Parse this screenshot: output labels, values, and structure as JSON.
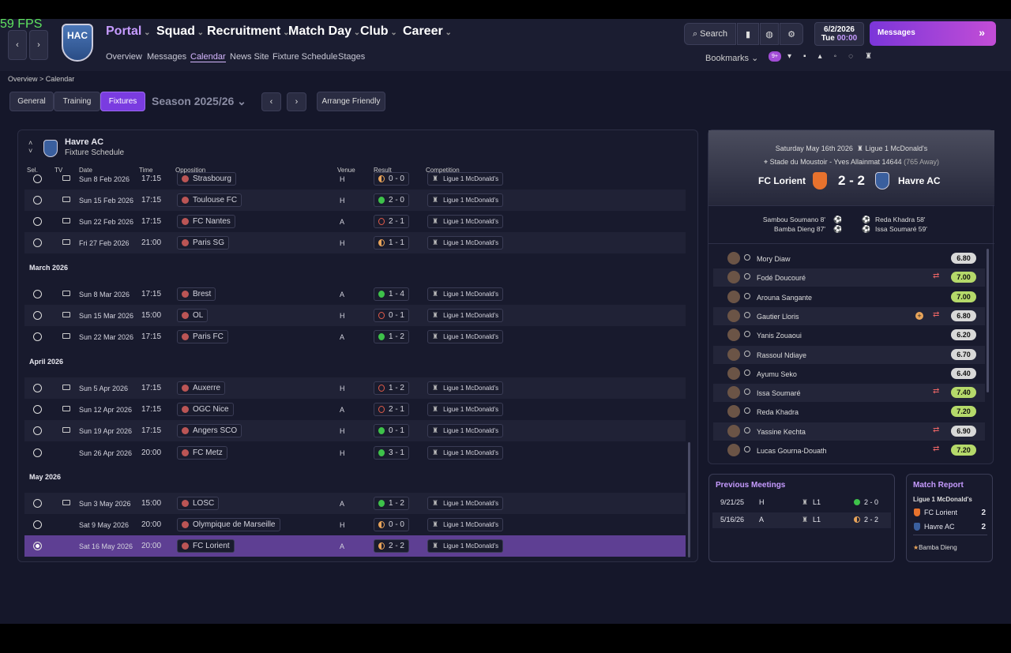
{
  "fps": "59 FPS",
  "logo": "HAC",
  "nav": {
    "main": [
      "Portal",
      "Squad",
      "Recruitment",
      "Match Day",
      "Club",
      "Career"
    ],
    "sub": [
      "Overview",
      "Messages",
      "Calendar",
      "News Site",
      "Fixture Schedule",
      "Stages"
    ],
    "active_sub": 2
  },
  "toolbar": {
    "search": "Search",
    "date": "6/2/2026",
    "day": "Tue",
    "time": "00:00",
    "messages": "Messages",
    "bookmarks": "Bookmarks",
    "badge": "9+"
  },
  "breadcrumb": [
    "Overview",
    "Calendar"
  ],
  "tabs": [
    "General",
    "Training",
    "Fixtures"
  ],
  "active_tab": 2,
  "season": "Season 2025/26",
  "arrange": "Arrange Friendly",
  "panel": {
    "team": "Havre AC",
    "subtitle": "Fixture Schedule",
    "columns": [
      "Sel.",
      "TV",
      "Date",
      "Time",
      "Opposition",
      "Venue",
      "Result",
      "Competition"
    ]
  },
  "fixtures": [
    {
      "rows": [
        {
          "date": "Sun 8 Feb 2026",
          "time": "17:15",
          "opponent": "Strasbourg",
          "venue": "H",
          "result": "0 - 0",
          "result_icon": "half",
          "result_color": "#e8a45a",
          "competition": "Ligue 1 McDonald's",
          "tv": true
        },
        {
          "date": "Sun 15 Feb 2026",
          "time": "17:15",
          "opponent": "Toulouse FC",
          "venue": "H",
          "result": "2 - 0",
          "result_icon": "filled",
          "result_color": "#3ec24a",
          "competition": "Ligue 1 McDonald's",
          "tv": true
        },
        {
          "date": "Sun 22 Feb 2026",
          "time": "17:15",
          "opponent": "FC Nantes",
          "venue": "A",
          "result": "2 - 1",
          "result_icon": "outline",
          "result_color": "#e25b4a",
          "competition": "Ligue 1 McDonald's",
          "tv": true
        },
        {
          "date": "Fri 27 Feb 2026",
          "time": "21:00",
          "opponent": "Paris SG",
          "venue": "H",
          "result": "1 - 1",
          "result_icon": "half",
          "result_color": "#e8a45a",
          "competition": "Ligue 1 McDonald's",
          "tv": true
        }
      ]
    },
    {
      "month": "March 2026",
      "rows": [
        {
          "date": "Sun 8 Mar 2026",
          "time": "17:15",
          "opponent": "Brest",
          "venue": "A",
          "result": "1 - 4",
          "result_icon": "filled",
          "result_color": "#3ec24a",
          "competition": "Ligue 1 McDonald's",
          "tv": true
        },
        {
          "date": "Sun 15 Mar 2026",
          "time": "15:00",
          "opponent": "OL",
          "venue": "H",
          "result": "0 - 1",
          "result_icon": "outline",
          "result_color": "#e25b4a",
          "competition": "Ligue 1 McDonald's",
          "tv": true
        },
        {
          "date": "Sun 22 Mar 2026",
          "time": "17:15",
          "opponent": "Paris FC",
          "venue": "A",
          "result": "1 - 2",
          "result_icon": "filled",
          "result_color": "#3ec24a",
          "competition": "Ligue 1 McDonald's",
          "tv": true
        }
      ]
    },
    {
      "month": "April 2026",
      "rows": [
        {
          "date": "Sun 5 Apr 2026",
          "time": "17:15",
          "opponent": "Auxerre",
          "venue": "H",
          "result": "1 - 2",
          "result_icon": "outline",
          "result_color": "#e25b4a",
          "competition": "Ligue 1 McDonald's",
          "tv": true
        },
        {
          "date": "Sun 12 Apr 2026",
          "time": "17:15",
          "opponent": "OGC Nice",
          "venue": "A",
          "result": "2 - 1",
          "result_icon": "outline",
          "result_color": "#e25b4a",
          "competition": "Ligue 1 McDonald's",
          "tv": true
        },
        {
          "date": "Sun 19 Apr 2026",
          "time": "17:15",
          "opponent": "Angers SCO",
          "venue": "H",
          "result": "0 - 1",
          "result_icon": "filled",
          "result_color": "#3ec24a",
          "competition": "Ligue 1 McDonald's",
          "tv": true
        },
        {
          "date": "Sun 26 Apr 2026",
          "time": "20:00",
          "opponent": "FC Metz",
          "venue": "H",
          "result": "3 - 1",
          "result_icon": "filled",
          "result_color": "#3ec24a",
          "competition": "Ligue 1 McDonald's",
          "tv": false
        }
      ]
    },
    {
      "month": "May 2026",
      "rows": [
        {
          "date": "Sun 3 May 2026",
          "time": "15:00",
          "opponent": "LOSC",
          "venue": "A",
          "result": "1 - 2",
          "result_icon": "filled",
          "result_color": "#3ec24a",
          "competition": "Ligue 1 McDonald's",
          "tv": true
        },
        {
          "date": "Sat 9 May 2026",
          "time": "20:00",
          "opponent": "Olympique de Marseille",
          "venue": "H",
          "result": "0 - 0",
          "result_icon": "half",
          "result_color": "#e8a45a",
          "competition": "Ligue 1 McDonald's",
          "tv": false
        },
        {
          "date": "Sat 16 May 2026",
          "time": "20:00",
          "opponent": "FC Lorient",
          "venue": "A",
          "result": "2 - 2",
          "result_icon": "half",
          "result_color": "#e8a45a",
          "competition": "Ligue 1 McDonald's",
          "tv": false,
          "selected": true
        }
      ]
    }
  ],
  "match": {
    "date": "Saturday May 16th 2026",
    "competition": "Ligue 1 McDonald's",
    "stadium": "Stade du Moustoir - Yves Allainmat",
    "attendance": "14644",
    "away_fans": "(765 Away)",
    "home": "FC Lorient",
    "score": "2 - 2",
    "away": "Havre AC",
    "home_scorers": [
      "Sambou Soumano 8'",
      "Bamba Dieng 87'"
    ],
    "away_scorers": [
      "Reda Khadra 58'",
      "Issa Soumaré 59'"
    ],
    "players": [
      {
        "name": "Mory Diaw",
        "rating": "6.80",
        "rating_color": "#d8d8d8"
      },
      {
        "name": "Fodé Doucouré",
        "rating": "7.00",
        "rating_color": "#b5d96a",
        "sub": true
      },
      {
        "name": "Arouna Sangante",
        "rating": "7.00",
        "rating_color": "#b5d96a"
      },
      {
        "name": "Gautier Lloris",
        "rating": "6.80",
        "rating_color": "#d8d8d8",
        "sub": true,
        "plus": true
      },
      {
        "name": "Yanis Zouaoui",
        "rating": "6.20",
        "rating_color": "#d8d8d8"
      },
      {
        "name": "Rassoul Ndiaye",
        "rating": "6.70",
        "rating_color": "#d8d8d8"
      },
      {
        "name": "Ayumu Seko",
        "rating": "6.40",
        "rating_color": "#d8d8d8"
      },
      {
        "name": "Issa Soumaré",
        "rating": "7.40",
        "rating_color": "#b5d96a",
        "sub": true
      },
      {
        "name": "Reda Khadra",
        "rating": "7.20",
        "rating_color": "#b5d96a"
      },
      {
        "name": "Yassine Kechta",
        "rating": "6.90",
        "rating_color": "#d8d8d8",
        "sub": true
      },
      {
        "name": "Lucas Gourna-Douath",
        "rating": "7.20",
        "rating_color": "#b5d96a",
        "sub": true
      }
    ]
  },
  "previous": {
    "title": "Previous Meetings",
    "rows": [
      {
        "date": "9/21/25",
        "venue": "H",
        "comp": "L1",
        "score": "2 - 0",
        "color": "#3ec24a",
        "icon": "filled"
      },
      {
        "date": "5/16/26",
        "venue": "A",
        "comp": "L1",
        "score": "2 - 2",
        "color": "#e8a45a",
        "icon": "half"
      }
    ]
  },
  "report": {
    "title": "Match Report",
    "competition": "Ligue 1 McDonald's",
    "teams": [
      {
        "name": "FC Lorient",
        "goals": "2"
      },
      {
        "name": "Havre AC",
        "goals": "2"
      }
    ],
    "pom": "Bamba Dieng"
  }
}
